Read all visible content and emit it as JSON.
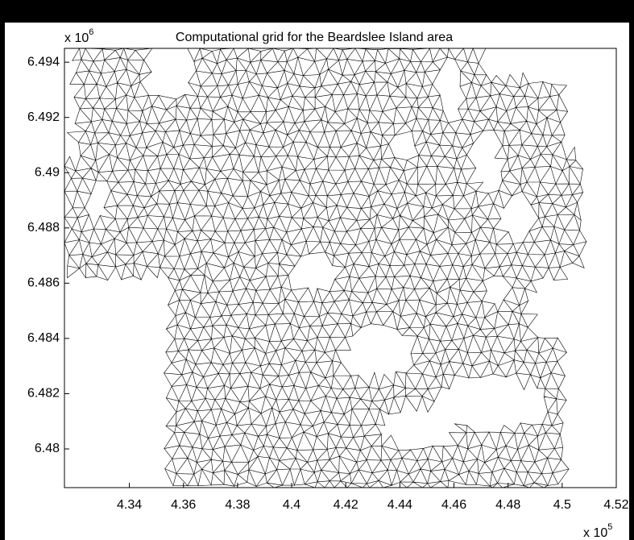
{
  "chart_data": {
    "type": "mesh",
    "title": "Computational grid for the Beardslee Island area",
    "xlim": [
      4.316,
      4.52
    ],
    "ylim": [
      6.4786,
      6.4945
    ],
    "xticks": [
      4.34,
      4.36,
      4.38,
      4.4,
      4.42,
      4.44,
      4.46,
      4.48,
      4.5,
      4.52
    ],
    "yticks": [
      6.48,
      6.482,
      6.484,
      6.486,
      6.488,
      6.49,
      6.492,
      6.494
    ],
    "x_multiplier": {
      "base": "x 10",
      "exponent": "5"
    },
    "y_multiplier": {
      "base": "x 10",
      "exponent": "6"
    },
    "color": "#000000"
  }
}
